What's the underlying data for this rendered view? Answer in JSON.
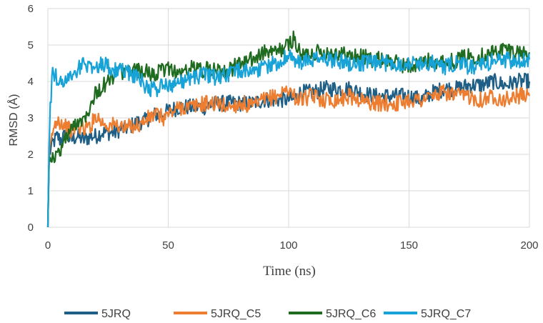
{
  "chart_data": {
    "type": "line",
    "xlabel": "Time (ns)",
    "ylabel": "RMSD (Å)",
    "xlim": [
      0,
      200
    ],
    "ylim": [
      0,
      6
    ],
    "x_ticks": [
      0,
      50,
      100,
      150,
      200
    ],
    "y_ticks": [
      0,
      1,
      2,
      3,
      4,
      5,
      6
    ],
    "grid": "vertical and horizontal major gridlines",
    "legend_position": "bottom",
    "x": [
      0,
      0.5,
      1,
      2,
      3,
      4,
      5,
      7,
      10,
      12,
      15,
      18,
      20,
      22,
      25,
      28,
      30,
      32,
      35,
      38,
      40,
      42,
      45,
      48,
      50,
      55,
      60,
      65,
      70,
      75,
      80,
      85,
      90,
      95,
      100,
      102,
      105,
      110,
      115,
      120,
      125,
      130,
      135,
      140,
      145,
      150,
      155,
      160,
      165,
      170,
      175,
      180,
      185,
      190,
      195,
      200
    ],
    "series": [
      {
        "name": "5JRQ",
        "color": "#1f5f86",
        "values": [
          0,
          1.8,
          2.1,
          2.3,
          2.4,
          2.5,
          2.4,
          2.5,
          2.4,
          2.5,
          2.4,
          2.5,
          2.5,
          2.6,
          2.6,
          2.6,
          2.7,
          2.7,
          2.8,
          2.9,
          2.9,
          3.0,
          3.1,
          3.1,
          3.2,
          3.3,
          3.3,
          3.3,
          3.4,
          3.4,
          3.4,
          3.4,
          3.5,
          3.5,
          3.5,
          3.5,
          3.7,
          3.7,
          3.8,
          3.8,
          3.8,
          3.7,
          3.6,
          3.6,
          3.6,
          3.6,
          3.5,
          3.7,
          3.8,
          3.8,
          3.9,
          3.9,
          4.0,
          3.9,
          4.0,
          4.0
        ]
      },
      {
        "name": "5JRQ_C5",
        "color": "#ed7d31",
        "values": [
          0,
          1.9,
          2.2,
          2.6,
          2.8,
          3.0,
          2.9,
          2.8,
          2.6,
          2.8,
          2.7,
          2.8,
          3.1,
          2.9,
          2.8,
          2.8,
          2.8,
          2.7,
          2.8,
          2.8,
          2.9,
          3.0,
          3.1,
          3.0,
          3.1,
          3.3,
          3.3,
          3.4,
          3.4,
          3.3,
          3.4,
          3.3,
          3.5,
          3.6,
          3.8,
          3.6,
          3.5,
          3.6,
          3.5,
          3.5,
          3.6,
          3.5,
          3.4,
          3.4,
          3.4,
          3.5,
          3.5,
          3.6,
          3.7,
          3.6,
          3.6,
          3.5,
          3.6,
          3.5,
          3.6,
          3.6
        ]
      },
      {
        "name": "5JRQ_C6",
        "color": "#1f6b1f",
        "values": [
          0,
          1.9,
          2.0,
          1.9,
          1.9,
          2.0,
          2.1,
          2.4,
          2.7,
          2.9,
          3.0,
          3.4,
          3.7,
          3.8,
          4.0,
          4.2,
          4.3,
          4.2,
          4.3,
          4.3,
          4.3,
          4.2,
          4.2,
          4.3,
          4.4,
          4.2,
          4.4,
          4.3,
          4.4,
          4.3,
          4.5,
          4.6,
          4.8,
          4.8,
          5.0,
          5.2,
          4.7,
          4.8,
          4.8,
          4.8,
          4.7,
          4.7,
          4.6,
          4.6,
          4.5,
          4.4,
          4.5,
          4.6,
          4.5,
          4.6,
          4.7,
          4.7,
          4.8,
          4.9,
          4.8,
          4.8
        ]
      },
      {
        "name": "5JRQ_C7",
        "color": "#17a2d8",
        "values": [
          0,
          2.2,
          3.3,
          4.3,
          4.2,
          4.0,
          4.0,
          4.0,
          4.2,
          4.3,
          4.5,
          4.4,
          4.4,
          4.5,
          4.4,
          4.3,
          4.3,
          4.3,
          4.2,
          4.1,
          3.9,
          3.8,
          3.8,
          3.9,
          3.9,
          4.0,
          4.1,
          4.2,
          4.1,
          4.2,
          4.3,
          4.3,
          4.4,
          4.5,
          4.7,
          4.6,
          4.5,
          4.6,
          4.6,
          4.6,
          4.5,
          4.5,
          4.5,
          4.5,
          4.5,
          4.5,
          4.5,
          4.5,
          4.4,
          4.5,
          4.4,
          4.4,
          4.6,
          4.6,
          4.5,
          4.6
        ]
      }
    ]
  }
}
